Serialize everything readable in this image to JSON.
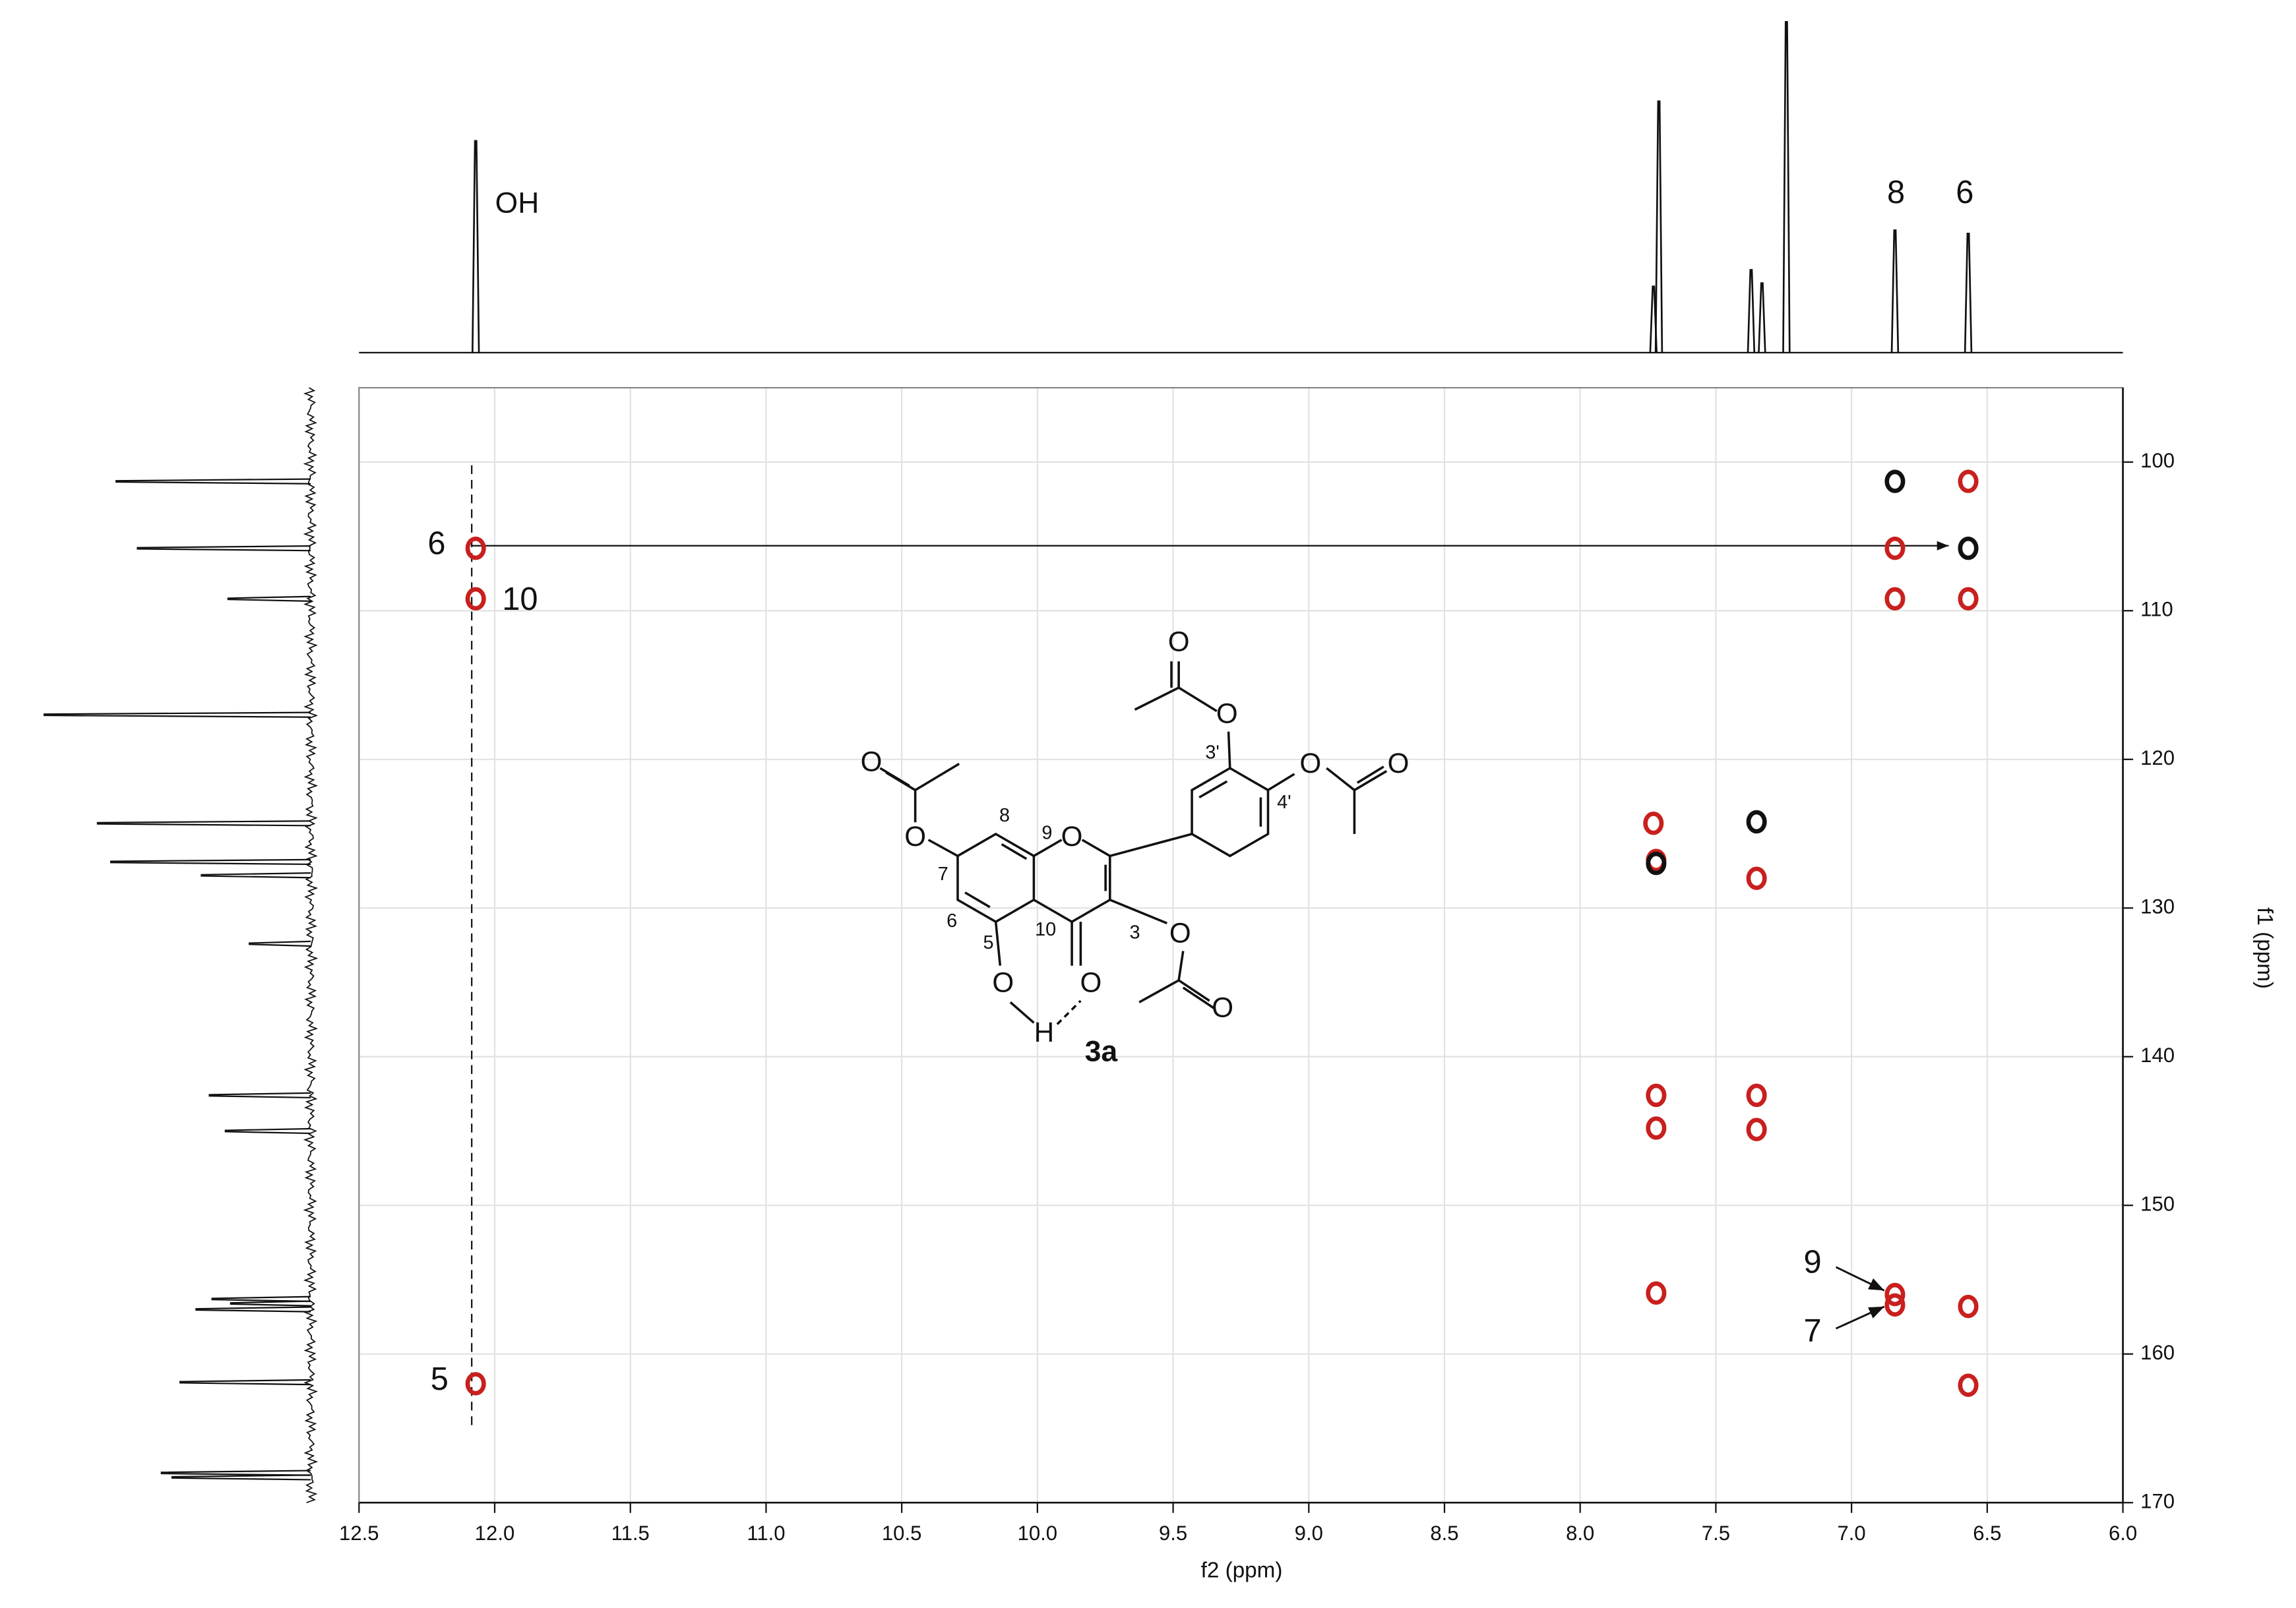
{
  "chart_data": {
    "type": "scatter",
    "xlabel": "f2 (ppm)",
    "ylabel": "f1 (ppm)",
    "xlim": [
      12.5,
      6.0
    ],
    "ylim": [
      95,
      170
    ],
    "xticks": [
      12.5,
      {
        "value": 12,
        "label": "12.0"
      },
      11.5,
      {
        "value": 11,
        "label": "11.0"
      },
      10.5,
      {
        "value": 10,
        "label": "10.0"
      },
      9.5,
      {
        "value": 9,
        "label": "9.0"
      },
      8.5,
      {
        "value": 8,
        "label": "8.0"
      },
      7.5,
      {
        "value": 7,
        "label": "7.0"
      },
      6.5,
      {
        "value": 6,
        "label": "6.0"
      }
    ],
    "yticks": [
      100,
      110,
      120,
      130,
      140,
      150,
      160,
      170
    ],
    "grid": true,
    "series": [
      {
        "color": "#c8201e",
        "x": [
          12.07,
          12.07,
          12.07,
          6.84,
          6.84,
          6.57,
          6.57,
          6.84,
          6.84,
          6.57,
          6.57,
          7.73,
          7.72,
          7.35,
          7.72,
          7.72,
          7.35,
          7.35,
          7.72
        ],
        "y": [
          105.8,
          109.2,
          162.0,
          105.8,
          109.2,
          101.3,
          109.2,
          156.0,
          156.7,
          156.8,
          162.1,
          124.3,
          126.8,
          128.0,
          142.6,
          144.8,
          142.6,
          144.9,
          155.9
        ]
      },
      {
        "color": "#111111",
        "x": [
          6.84,
          6.57,
          7.35,
          7.72
        ],
        "y": [
          101.3,
          105.8,
          124.2,
          127.0
        ]
      }
    ],
    "top_spectrum": {
      "x": [
        12.07,
        7.73,
        7.71,
        7.37,
        7.33,
        7.24,
        6.84,
        6.57
      ],
      "intensity": [
        0.64,
        0.2,
        0.76,
        0.25,
        0.21,
        1.0,
        0.37,
        0.36
      ]
    },
    "left_spectrum": {
      "y": [
        101.3,
        105.8,
        109.2,
        117.0,
        124.3,
        126.9,
        127.8,
        132.4,
        142.6,
        145.0,
        156.3,
        156.6,
        157.0,
        161.9,
        168.0,
        168.3
      ],
      "intensity": [
        0.73,
        0.65,
        0.31,
        1.0,
        0.8,
        0.75,
        0.41,
        0.23,
        0.38,
        0.32,
        0.37,
        0.3,
        0.43,
        0.49,
        0.56,
        0.52
      ]
    },
    "annotations": [
      "OH",
      "8",
      "6",
      "6",
      "10",
      "5",
      "9",
      "7"
    ]
  },
  "structure": {
    "compound": "3a",
    "locants": [
      "8",
      "9",
      "7",
      "6",
      "5",
      "10",
      "3",
      "3'",
      "4'"
    ],
    "atoms": [
      "O",
      "O",
      "O",
      "O",
      "O",
      "O",
      "O",
      "O",
      "O",
      "O",
      "O",
      "H"
    ]
  }
}
